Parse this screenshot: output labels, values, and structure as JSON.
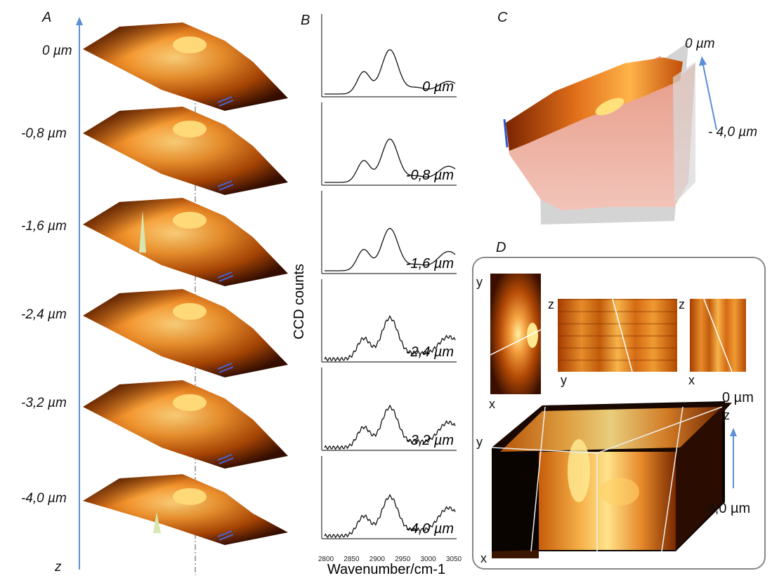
{
  "panels": {
    "a": "A",
    "b": "B",
    "c": "C",
    "d": "D"
  },
  "panel_a": {
    "depths": [
      "0 µm",
      "-0,8 µm",
      "-1,6 µm",
      "-2,4 µm",
      "-3,2 µm",
      "-4,0 µm"
    ],
    "axis": "z",
    "colors": {
      "dark": "#1a0600",
      "mid": "#b34a00",
      "bright": "#f6a23a",
      "highlight": "#ffe080",
      "arrow": "#5b8fd6"
    }
  },
  "panel_b": {
    "ylabel": "CCD counts",
    "xlabel": "Wavenumber/cm-1",
    "xticks": [
      "2800",
      "2850",
      "2900",
      "2950",
      "3000",
      "3050"
    ],
    "labels": [
      "0 µm",
      "-0,8 µm",
      "-1,6 µm",
      "-2,4 µm",
      "-3,2 µm",
      "-4,0 µm"
    ]
  },
  "panel_c": {
    "top": "0 µm",
    "bottom": "- 4,0 µm"
  },
  "panel_d": {
    "axes": {
      "y1": "y",
      "x1": "x",
      "z1": "z",
      "y2": "y",
      "z2": "z",
      "x2": "x",
      "y3": "y",
      "x3": "x",
      "z3": "z"
    },
    "top": "0 µm",
    "bottom": "-4,0 µm"
  }
}
